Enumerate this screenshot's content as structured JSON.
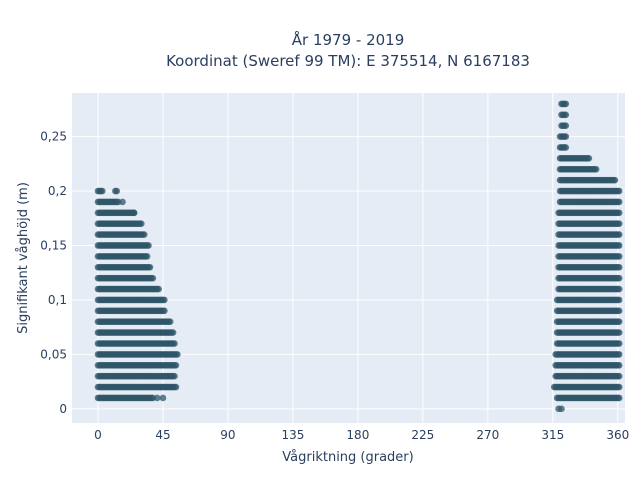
{
  "chart_data": {
    "type": "scatter",
    "title_line1": "År 1979 - 2019",
    "title_line2": "Koordinat (Sweref 99 TM): E 375514, N 6167183",
    "xlabel": "Vågriktning (grader)",
    "ylabel": "Signifikant våghöjd (m)",
    "xlim": [
      -18,
      365
    ],
    "ylim": [
      -0.013,
      0.29
    ],
    "xticks": [
      0,
      45,
      90,
      135,
      180,
      225,
      270,
      315,
      360
    ],
    "xtick_labels": [
      "0",
      "45",
      "90",
      "135",
      "180",
      "225",
      "270",
      "315",
      "360"
    ],
    "yticks": [
      0,
      0.05,
      0.1,
      0.15,
      0.2,
      0.25
    ],
    "ytick_labels": [
      "0",
      "0,05",
      "0,1",
      "0,15",
      "0,2",
      "0,25"
    ],
    "grid": true,
    "colors": {
      "plot_bg": "#e5ecf6",
      "grid": "#ffffff",
      "marker": "#2f5568",
      "text": "#2a3f5f"
    },
    "series": [
      {
        "marker_opacity": 0.75,
        "rows": [
          {
            "y": 0.01,
            "ranges": [
              [
                0,
                38
              ]
            ],
            "extra": [
              41,
              45
            ]
          },
          {
            "y": 0.02,
            "ranges": [
              [
                0,
                54
              ]
            ]
          },
          {
            "y": 0.03,
            "ranges": [
              [
                0,
                53
              ]
            ]
          },
          {
            "y": 0.04,
            "ranges": [
              [
                0,
                54
              ]
            ]
          },
          {
            "y": 0.05,
            "ranges": [
              [
                0,
                55
              ]
            ]
          },
          {
            "y": 0.06,
            "ranges": [
              [
                0,
                53
              ]
            ]
          },
          {
            "y": 0.07,
            "ranges": [
              [
                0,
                52
              ]
            ]
          },
          {
            "y": 0.08,
            "ranges": [
              [
                0,
                50
              ]
            ]
          },
          {
            "y": 0.09,
            "ranges": [
              [
                0,
                46
              ]
            ]
          },
          {
            "y": 0.1,
            "ranges": [
              [
                0,
                46
              ]
            ]
          },
          {
            "y": 0.11,
            "ranges": [
              [
                0,
                42
              ]
            ]
          },
          {
            "y": 0.12,
            "ranges": [
              [
                0,
                38
              ]
            ]
          },
          {
            "y": 0.13,
            "ranges": [
              [
                0,
                36
              ]
            ]
          },
          {
            "y": 0.14,
            "ranges": [
              [
                0,
                34
              ]
            ]
          },
          {
            "y": 0.15,
            "ranges": [
              [
                0,
                35
              ]
            ]
          },
          {
            "y": 0.16,
            "ranges": [
              [
                0,
                32
              ]
            ]
          },
          {
            "y": 0.17,
            "ranges": [
              [
                0,
                30
              ]
            ]
          },
          {
            "y": 0.18,
            "ranges": [
              [
                0,
                25
              ]
            ],
            "extra": [
              25
            ]
          },
          {
            "y": 0.19,
            "ranges": [
              [
                0,
                14
              ]
            ],
            "extra": [
              17
            ]
          },
          {
            "y": 0.2,
            "ranges": [
              [
                0,
                3
              ]
            ],
            "extra": [
              12,
              13
            ]
          },
          {
            "y": 0.0,
            "ranges": [],
            "extra": [
              319,
              321
            ]
          },
          {
            "y": 0.01,
            "ranges": [
              [
                318,
                361
              ]
            ]
          },
          {
            "y": 0.02,
            "ranges": [
              [
                316,
                361
              ]
            ]
          },
          {
            "y": 0.03,
            "ranges": [
              [
                317,
                361
              ]
            ]
          },
          {
            "y": 0.04,
            "ranges": [
              [
                317,
                361
              ]
            ]
          },
          {
            "y": 0.05,
            "ranges": [
              [
                317,
                361
              ]
            ]
          },
          {
            "y": 0.06,
            "ranges": [
              [
                318,
                361
              ]
            ]
          },
          {
            "y": 0.07,
            "ranges": [
              [
                318,
                361
              ]
            ]
          },
          {
            "y": 0.08,
            "ranges": [
              [
                318,
                361
              ]
            ]
          },
          {
            "y": 0.09,
            "ranges": [
              [
                318,
                361
              ]
            ]
          },
          {
            "y": 0.1,
            "ranges": [
              [
                318,
                361
              ]
            ]
          },
          {
            "y": 0.11,
            "ranges": [
              [
                319,
                361
              ]
            ]
          },
          {
            "y": 0.12,
            "ranges": [
              [
                319,
                361
              ]
            ]
          },
          {
            "y": 0.13,
            "ranges": [
              [
                319,
                361
              ]
            ]
          },
          {
            "y": 0.14,
            "ranges": [
              [
                319,
                361
              ]
            ]
          },
          {
            "y": 0.15,
            "ranges": [
              [
                319,
                361
              ]
            ]
          },
          {
            "y": 0.16,
            "ranges": [
              [
                319,
                361
              ]
            ]
          },
          {
            "y": 0.17,
            "ranges": [
              [
                319,
                361
              ]
            ]
          },
          {
            "y": 0.18,
            "ranges": [
              [
                319,
                361
              ]
            ]
          },
          {
            "y": 0.19,
            "ranges": [
              [
                320,
                361
              ]
            ]
          },
          {
            "y": 0.2,
            "ranges": [
              [
                320,
                361
              ]
            ]
          },
          {
            "y": 0.21,
            "ranges": [
              [
                320,
                358
              ]
            ]
          },
          {
            "y": 0.22,
            "ranges": [
              [
                320,
                345
              ]
            ]
          },
          {
            "y": 0.23,
            "ranges": [
              [
                320,
                340
              ]
            ]
          },
          {
            "y": 0.24,
            "ranges": [
              [
                320,
                324
              ]
            ]
          },
          {
            "y": 0.25,
            "ranges": [
              [
                320,
                324
              ]
            ]
          },
          {
            "y": 0.26,
            "ranges": [
              [
                321,
                324
              ]
            ]
          },
          {
            "y": 0.27,
            "ranges": [
              [
                321,
                324
              ]
            ]
          },
          {
            "y": 0.28,
            "ranges": [
              [
                321,
                324
              ]
            ]
          }
        ]
      }
    ]
  }
}
